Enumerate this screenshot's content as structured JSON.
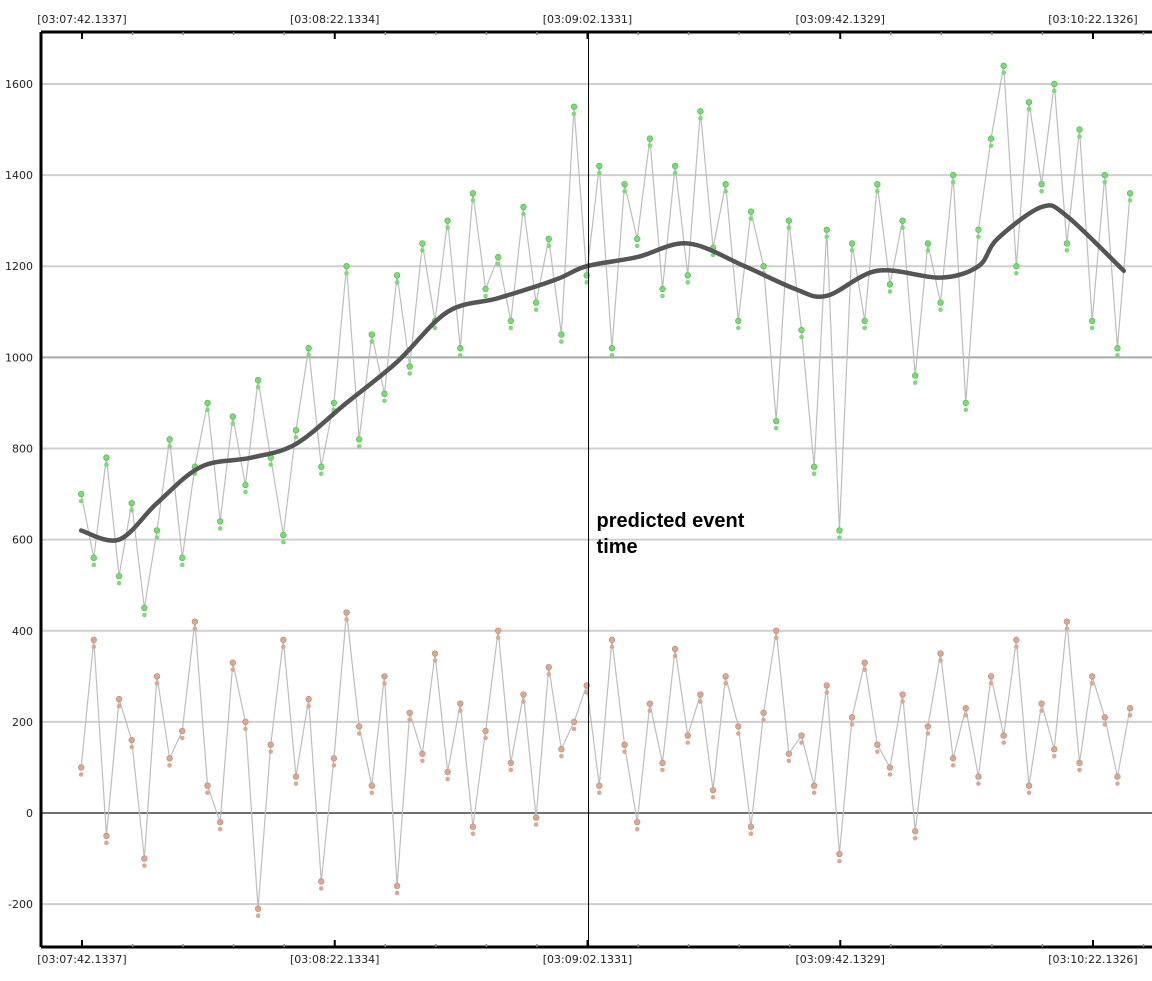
{
  "chart_data": {
    "type": "line",
    "title": "",
    "xlabel": "",
    "ylabel": "",
    "ylim": [
      -294,
      1714
    ],
    "grid": true,
    "y_ticks": [
      -200,
      0,
      200,
      400,
      600,
      800,
      1000,
      1200,
      1400,
      1600
    ],
    "x_ticks": [
      "[03:07:42.1337]",
      "[03:08:22.1334]",
      "[03:09:02.1331]",
      "[03:09:42.1329]",
      "[03:10:22.1326]"
    ],
    "x_tick_times": [
      "03:07:42.1337",
      "03:08:22.1334",
      "03:09:02.1331",
      "03:09:42.1329",
      "03:10:22.1326"
    ],
    "annotation": {
      "text_line1": "predicted event",
      "text_line2": "time",
      "time": "03:09:02.3"
    },
    "x": [
      "03:07:42",
      "03:07:44",
      "03:07:46",
      "03:07:48",
      "03:07:50",
      "03:07:52",
      "03:07:54",
      "03:07:56",
      "03:07:58",
      "03:08:00",
      "03:08:02",
      "03:08:04",
      "03:08:06",
      "03:08:08",
      "03:08:10",
      "03:08:12",
      "03:08:14",
      "03:08:16",
      "03:08:18",
      "03:08:20",
      "03:08:22",
      "03:08:24",
      "03:08:26",
      "03:08:28",
      "03:08:30",
      "03:08:32",
      "03:08:34",
      "03:08:36",
      "03:08:38",
      "03:08:40",
      "03:08:42",
      "03:08:44",
      "03:08:46",
      "03:08:48",
      "03:08:50",
      "03:08:52",
      "03:08:54",
      "03:08:56",
      "03:08:58",
      "03:09:00",
      "03:09:02",
      "03:09:04",
      "03:09:06",
      "03:09:08",
      "03:09:10",
      "03:09:12",
      "03:09:14",
      "03:09:16",
      "03:09:18",
      "03:09:20",
      "03:09:22",
      "03:09:24",
      "03:09:26",
      "03:09:28",
      "03:09:30",
      "03:09:32",
      "03:09:34",
      "03:09:36",
      "03:09:38",
      "03:09:40",
      "03:09:42",
      "03:09:44",
      "03:09:46",
      "03:09:48",
      "03:09:50",
      "03:09:52",
      "03:09:54",
      "03:09:56",
      "03:09:58",
      "03:10:00",
      "03:10:02",
      "03:10:04",
      "03:10:06",
      "03:10:08",
      "03:10:10",
      "03:10:12",
      "03:10:14",
      "03:10:16",
      "03:10:18",
      "03:10:20",
      "03:10:22",
      "03:10:24",
      "03:10:26",
      "03:10:28"
    ],
    "series": [
      {
        "color": "#7fd87a",
        "values": [
          700,
          560,
          780,
          520,
          680,
          450,
          620,
          820,
          560,
          760,
          900,
          640,
          870,
          720,
          950,
          780,
          610,
          840,
          1020,
          760,
          900,
          1200,
          820,
          1050,
          920,
          1180,
          980,
          1250,
          1080,
          1300,
          1020,
          1360,
          1150,
          1220,
          1080,
          1330,
          1120,
          1260,
          1050,
          1550,
          1180,
          1420,
          1020,
          1380,
          1260,
          1480,
          1150,
          1420,
          1180,
          1540,
          1240,
          1380,
          1080,
          1320,
          1200,
          860,
          1300,
          1060,
          760,
          1280,
          620,
          1250,
          1080,
          1380,
          1160,
          1300,
          960,
          1250,
          1120,
          1400,
          900,
          1280,
          1480,
          1640,
          1200,
          1560,
          1380,
          1600,
          1250,
          1500,
          1080,
          1400,
          1020,
          1360
        ]
      },
      {
        "color": "#d8a996",
        "values": [
          100,
          380,
          -50,
          250,
          160,
          -100,
          300,
          120,
          180,
          420,
          60,
          -20,
          330,
          200,
          -210,
          150,
          380,
          80,
          250,
          -150,
          120,
          440,
          190,
          60,
          300,
          -160,
          220,
          130,
          350,
          90,
          240,
          -30,
          180,
          400,
          110,
          260,
          -10,
          320,
          140,
          200,
          280,
          60,
          380,
          150,
          -20,
          240,
          110,
          360,
          170,
          260,
          50,
          300,
          190,
          -30,
          220,
          400,
          130,
          170,
          60,
          280,
          -90,
          210,
          330,
          150,
          100,
          260,
          -40,
          190,
          350,
          120,
          230,
          80,
          300,
          170,
          380,
          60,
          240,
          140,
          420,
          110,
          300,
          210,
          80,
          230
        ]
      }
    ],
    "trend": {
      "color": "#555555",
      "x": [
        "03:07:42",
        "03:07:48",
        "03:07:54",
        "03:08:01",
        "03:08:09",
        "03:08:16",
        "03:08:24",
        "03:08:32",
        "03:08:40",
        "03:08:48",
        "03:08:57",
        "03:09:02",
        "03:09:10",
        "03:09:18",
        "03:09:27",
        "03:09:35",
        "03:09:40",
        "03:09:48",
        "03:09:58",
        "03:10:04",
        "03:10:07",
        "03:10:14",
        "03:10:18",
        "03:10:27"
      ],
      "values": [
        620,
        600,
        680,
        760,
        780,
        810,
        900,
        990,
        1100,
        1130,
        1170,
        1200,
        1220,
        1250,
        1200,
        1150,
        1135,
        1190,
        1175,
        1200,
        1260,
        1330,
        1310,
        1190
      ]
    }
  }
}
